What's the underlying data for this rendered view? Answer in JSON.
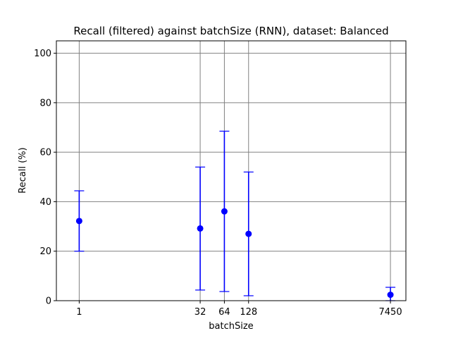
{
  "chart_data": {
    "type": "scatter",
    "title": "Recall (filtered) against batchSize (RNN), dataset: Balanced",
    "xlabel": "batchSize",
    "ylabel": "Recall (%)",
    "x_scale": "log",
    "x": [
      1,
      32,
      64,
      128,
      7450
    ],
    "x_tick_labels": [
      "1",
      "32",
      "64",
      "128",
      "7450"
    ],
    "series": [
      {
        "values": [
          32.2,
          29.2,
          36.1,
          27.0,
          2.4
        ],
        "error_lower": [
          20.0,
          4.3,
          3.7,
          2.0,
          0.0
        ],
        "error_upper": [
          44.4,
          54.0,
          68.5,
          52.0,
          5.4
        ]
      }
    ],
    "ylim": [
      0,
      105
    ],
    "y_ticks": [
      0,
      20,
      40,
      60,
      80,
      100
    ],
    "grid": true,
    "marker_color": "#0000ff",
    "grid_color": "#808080"
  }
}
